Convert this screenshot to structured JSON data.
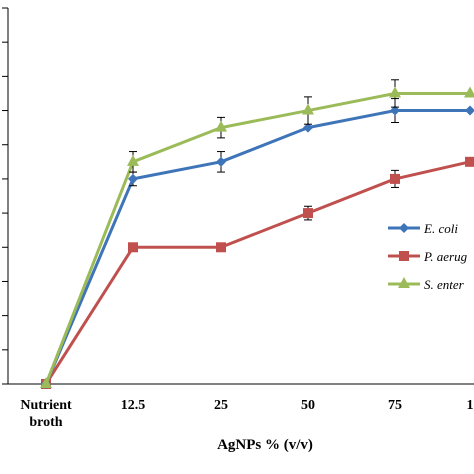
{
  "chart_data": {
    "type": "line",
    "xlabel": "AgNPs  % (v/v)",
    "ylabel": "",
    "categories": [
      "Nutrient broth",
      "12.5",
      "25",
      "50",
      "75",
      "1"
    ],
    "ylim": [
      0,
      11
    ],
    "grid": false,
    "legend_position": "right",
    "series": [
      {
        "name": "E. coli",
        "color": "#3e74b8",
        "marker": "diamond",
        "values": [
          0,
          6,
          6.5,
          7.5,
          8,
          8
        ],
        "errors": [
          0,
          0.2,
          0.3,
          0,
          0.35,
          0
        ]
      },
      {
        "name": "P. aerug",
        "color": "#c0504d",
        "marker": "square",
        "values": [
          0,
          4,
          4,
          5,
          6,
          6.5
        ],
        "errors": [
          0,
          0.1,
          0.1,
          0.2,
          0.25,
          0
        ]
      },
      {
        "name": "S. enter",
        "color": "#9bbb59",
        "marker": "triangle",
        "values": [
          0,
          6.5,
          7.5,
          8,
          8.5,
          8.5
        ],
        "errors": [
          0,
          0.3,
          0.3,
          0.4,
          0.4,
          0
        ]
      }
    ]
  }
}
